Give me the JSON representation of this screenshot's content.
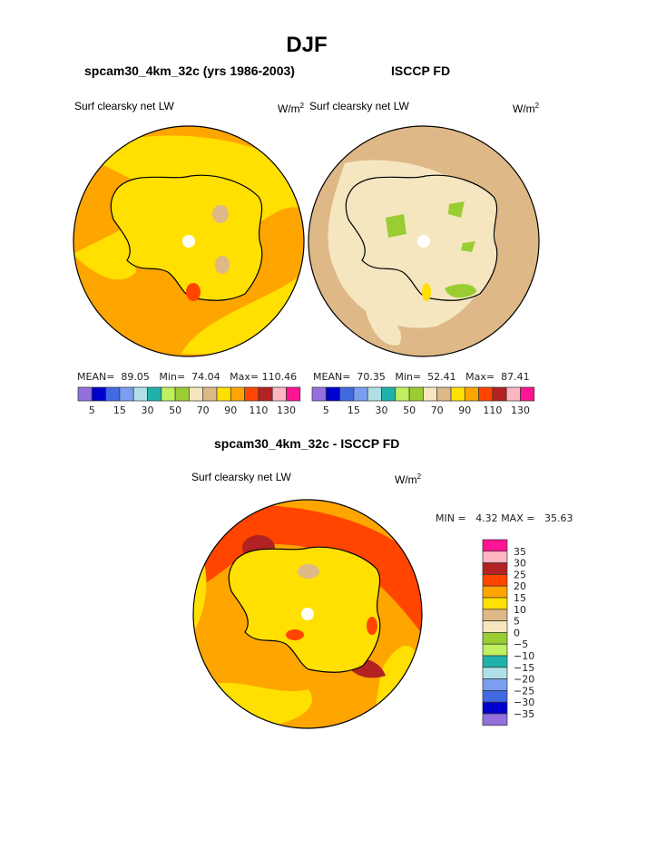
{
  "title": "DJF",
  "panels": [
    {
      "title": "spcam30_4km_32c (yrs 1986-2003)",
      "variable": "Surf clearsky net LW",
      "units": "W/m",
      "units_sup": "2",
      "stats": {
        "mean_label": "MEAN=",
        "mean": "89.05",
        "min_label": "Min=",
        "min": "74.04",
        "max_label": "Max=",
        "max": "110.46"
      }
    },
    {
      "title": "ISCCP FD",
      "variable": "Surf clearsky net LW",
      "units": "W/m",
      "units_sup": "2",
      "stats": {
        "mean_label": "MEAN=",
        "mean": "70.35",
        "min_label": "Min=",
        "min": "52.41",
        "max_label": "Max=",
        "max": "87.41"
      }
    },
    {
      "title": "spcam30_4km_32c - ISCCP FD",
      "variable": "Surf clearsky net LW",
      "units": "W/m",
      "units_sup": "2",
      "stats": {
        "min_label": "MIN =",
        "min": "4.32",
        "max_label": "MAX =",
        "max": "35.63"
      }
    }
  ],
  "colorbar": {
    "colors": [
      "#9370DB",
      "#0000CD",
      "#4169E1",
      "#7B9EF0",
      "#B0E0E6",
      "#20B2AA",
      "#C0F060",
      "#9ACD32",
      "#F5E6C0",
      "#DEB887",
      "#FFE000",
      "#FFA500",
      "#FF4500",
      "#B22222",
      "#FFB6C1",
      "#FF1493"
    ],
    "labels": [
      "5",
      "15",
      "30",
      "50",
      "70",
      "90",
      "110",
      "130"
    ],
    "diff_labels": [
      "35",
      "30",
      "25",
      "20",
      "15",
      "10",
      "5",
      "0",
      "−5",
      "−10",
      "−15",
      "−20",
      "−25",
      "−30",
      "−35"
    ]
  }
}
